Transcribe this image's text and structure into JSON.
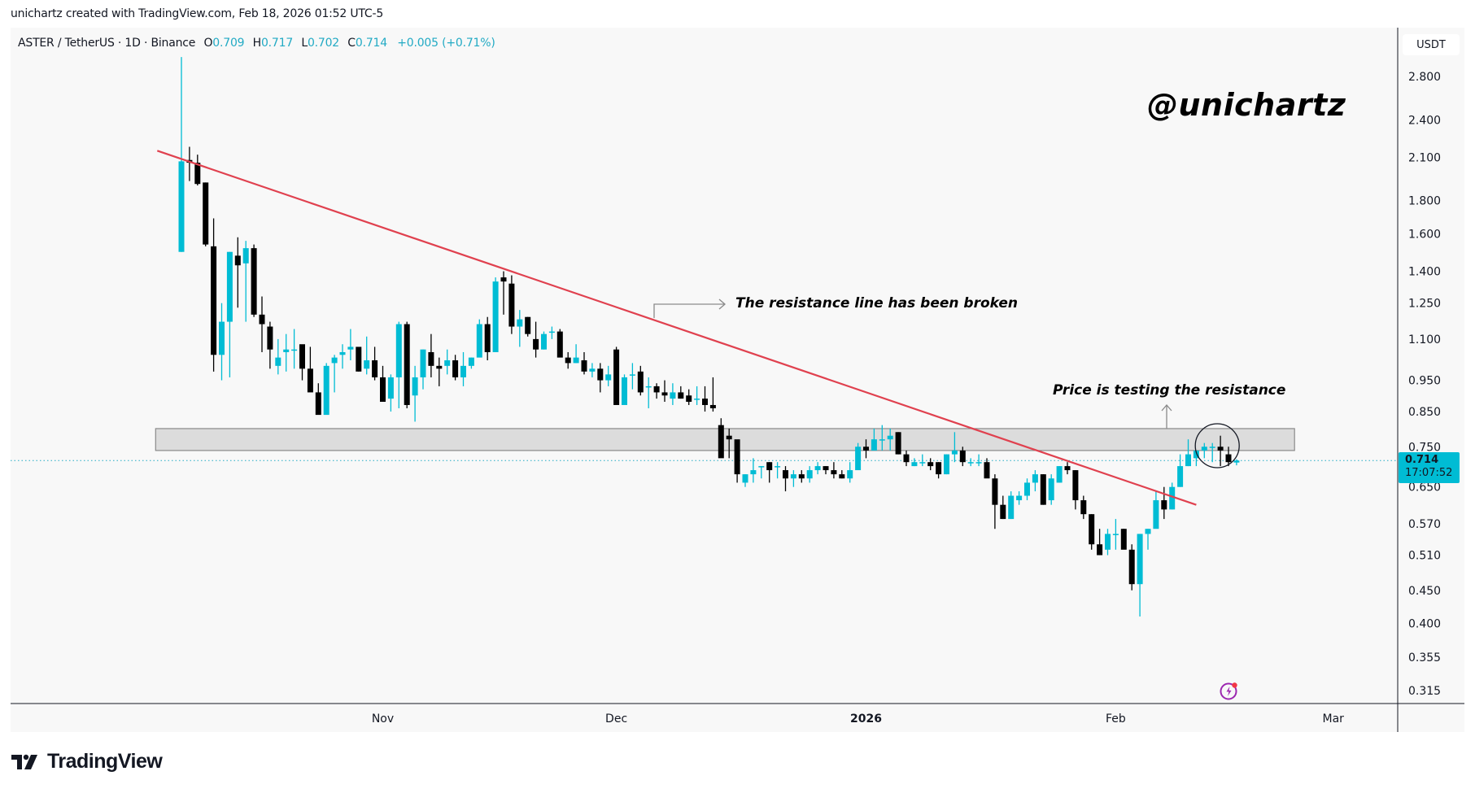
{
  "credit": "unichartz created with TradingView.com, Feb 18, 2026 01:52 UTC-5",
  "legend": {
    "symbol": "ASTER / TetherUS · 1D · Binance",
    "o_label": "O",
    "o_value": "0.709",
    "h_label": "H",
    "h_value": "0.717",
    "l_label": "L",
    "l_value": "0.702",
    "c_label": "C",
    "c_value": "0.714",
    "change": "+0.005 (+0.71%)"
  },
  "currency_button": "USDT",
  "watermark": "@unichartz",
  "annotations": {
    "broken": "The resistance line has been broken",
    "testing": "Price is testing the resistance"
  },
  "last_price": {
    "price": "0.714",
    "countdown": "17:07:52"
  },
  "brand": "TradingView",
  "colors": {
    "bull": "#00bcd4",
    "bear": "#000000",
    "trendline": "#e0414f",
    "zone": "#dcdcdc",
    "zone_border": "#8a8a8a",
    "price_line": "#22aac4"
  },
  "chart_data": {
    "type": "candlestick",
    "title": "ASTER / TetherUS · 1D · Binance",
    "scale": "log",
    "ylim": [
      0.3,
      3.0
    ],
    "yticks": [
      2.8,
      2.4,
      2.1,
      1.8,
      1.6,
      1.4,
      1.25,
      1.1,
      0.95,
      0.85,
      0.75,
      0.65,
      0.57,
      0.51,
      0.45,
      0.4,
      0.355,
      0.315
    ],
    "ytick_labels": [
      "2.800",
      "2.400",
      "2.100",
      "1.800",
      "1.600",
      "1.400",
      "1.250",
      "1.100",
      "0.950",
      "0.850",
      "0.750",
      "0.650",
      "0.570",
      "0.510",
      "0.450",
      "0.400",
      "0.355",
      "0.315"
    ],
    "xticks": [
      {
        "label": "Nov",
        "index": 25,
        "bold": false
      },
      {
        "label": "Dec",
        "index": 54,
        "bold": false
      },
      {
        "label": "2026",
        "index": 85,
        "bold": true
      },
      {
        "label": "Feb",
        "index": 116,
        "bold": false
      },
      {
        "label": "Mar",
        "index": 143,
        "bold": false
      }
    ],
    "resistance_zone": {
      "low": 0.74,
      "high": 0.8,
      "from_index": -3,
      "to_index": 138
    },
    "trendline": {
      "from": {
        "index": -3,
        "price": 2.15
      },
      "to": {
        "index": 126,
        "price": 0.61
      }
    },
    "circle_marker": {
      "index": 128,
      "price": 0.74
    },
    "last_price": 0.714,
    "candles": [
      [
        1.5,
        3.0,
        1.5,
        2.07
      ],
      [
        2.08,
        2.18,
        1.93,
        2.06
      ],
      [
        2.06,
        2.12,
        1.9,
        1.91
      ],
      [
        1.92,
        1.92,
        1.53,
        1.54
      ],
      [
        1.53,
        1.69,
        0.98,
        1.04
      ],
      [
        1.04,
        1.25,
        0.95,
        1.17
      ],
      [
        1.17,
        1.5,
        0.96,
        1.5
      ],
      [
        1.48,
        1.58,
        1.23,
        1.43
      ],
      [
        1.44,
        1.56,
        1.17,
        1.52
      ],
      [
        1.52,
        1.54,
        1.19,
        1.2
      ],
      [
        1.2,
        1.28,
        1.05,
        1.16
      ],
      [
        1.15,
        1.17,
        0.99,
        1.06
      ],
      [
        1.0,
        1.1,
        0.97,
        1.03
      ],
      [
        1.05,
        1.12,
        0.98,
        1.06
      ],
      [
        1.06,
        1.14,
        0.99,
        1.06
      ],
      [
        1.08,
        1.06,
        0.95,
        0.99
      ],
      [
        0.99,
        1.07,
        0.93,
        0.91
      ],
      [
        0.91,
        0.94,
        0.89,
        0.84
      ],
      [
        0.84,
        1.01,
        0.86,
        1.0
      ],
      [
        1.01,
        1.04,
        0.91,
        1.03
      ],
      [
        1.04,
        1.08,
        0.99,
        1.05
      ],
      [
        1.06,
        1.14,
        1.02,
        1.07
      ],
      [
        1.07,
        1.05,
        0.98,
        0.98
      ],
      [
        0.99,
        1.11,
        0.97,
        1.02
      ],
      [
        1.02,
        1.07,
        0.95,
        0.96
      ],
      [
        0.96,
        1.0,
        0.88,
        0.88
      ],
      [
        0.89,
        0.97,
        0.85,
        0.96
      ],
      [
        0.96,
        1.17,
        0.86,
        1.16
      ],
      [
        1.16,
        1.17,
        0.86,
        0.87
      ],
      [
        0.9,
        1.0,
        0.82,
        0.96
      ],
      [
        0.96,
        1.06,
        0.92,
        1.06
      ],
      [
        1.05,
        1.12,
        0.96,
        1.0
      ],
      [
        1.0,
        1.03,
        0.93,
        0.99
      ],
      [
        1.0,
        1.06,
        0.97,
        1.02
      ],
      [
        1.02,
        1.04,
        0.95,
        0.96
      ],
      [
        0.96,
        1.05,
        0.93,
        1.0
      ],
      [
        1.0,
        1.03,
        0.99,
        1.03
      ],
      [
        1.03,
        1.18,
        1.04,
        1.16
      ],
      [
        1.16,
        1.19,
        1.02,
        1.05
      ],
      [
        1.05,
        1.37,
        1.06,
        1.35
      ],
      [
        1.37,
        1.4,
        1.2,
        1.35
      ],
      [
        1.34,
        1.38,
        1.12,
        1.15
      ],
      [
        1.15,
        1.22,
        1.07,
        1.18
      ],
      [
        1.19,
        1.19,
        1.11,
        1.12
      ],
      [
        1.1,
        1.17,
        1.03,
        1.06
      ],
      [
        1.06,
        1.13,
        1.06,
        1.12
      ],
      [
        1.13,
        1.15,
        1.1,
        1.13
      ],
      [
        1.13,
        1.14,
        1.05,
        1.03
      ],
      [
        1.03,
        1.05,
        0.99,
        1.01
      ],
      [
        1.01,
        1.08,
        1.01,
        1.03
      ],
      [
        1.02,
        1.05,
        0.97,
        0.98
      ],
      [
        0.98,
        1.01,
        0.96,
        0.99
      ],
      [
        0.99,
        1.01,
        0.91,
        0.95
      ],
      [
        0.95,
        1.0,
        0.93,
        0.97
      ],
      [
        1.06,
        1.07,
        0.89,
        0.87
      ],
      [
        0.87,
        0.97,
        0.89,
        0.96
      ],
      [
        0.97,
        1.01,
        0.92,
        0.97
      ],
      [
        0.98,
        1.0,
        0.9,
        0.91
      ],
      [
        0.93,
        0.96,
        0.86,
        0.93
      ],
      [
        0.93,
        0.94,
        0.89,
        0.91
      ],
      [
        0.91,
        0.95,
        0.88,
        0.9
      ],
      [
        0.89,
        0.94,
        0.87,
        0.91
      ],
      [
        0.91,
        0.93,
        0.89,
        0.89
      ],
      [
        0.9,
        0.92,
        0.87,
        0.88
      ],
      [
        0.89,
        0.93,
        0.87,
        0.89
      ],
      [
        0.89,
        0.93,
        0.85,
        0.87
      ],
      [
        0.87,
        0.96,
        0.85,
        0.86
      ],
      [
        0.81,
        0.83,
        0.76,
        0.72
      ],
      [
        0.78,
        0.8,
        0.72,
        0.77
      ],
      [
        0.77,
        0.74,
        0.66,
        0.68
      ],
      [
        0.66,
        0.68,
        0.65,
        0.68
      ],
      [
        0.68,
        0.72,
        0.66,
        0.69
      ],
      [
        0.7,
        0.7,
        0.67,
        0.7
      ],
      [
        0.71,
        0.71,
        0.66,
        0.69
      ],
      [
        0.7,
        0.71,
        0.67,
        0.7
      ],
      [
        0.69,
        0.7,
        0.64,
        0.67
      ],
      [
        0.67,
        0.69,
        0.65,
        0.68
      ],
      [
        0.68,
        0.69,
        0.66,
        0.67
      ],
      [
        0.67,
        0.7,
        0.66,
        0.69
      ],
      [
        0.69,
        0.71,
        0.68,
        0.7
      ],
      [
        0.7,
        0.7,
        0.68,
        0.69
      ],
      [
        0.69,
        0.71,
        0.67,
        0.68
      ],
      [
        0.68,
        0.69,
        0.67,
        0.67
      ],
      [
        0.67,
        0.71,
        0.66,
        0.69
      ],
      [
        0.69,
        0.76,
        0.7,
        0.75
      ],
      [
        0.75,
        0.77,
        0.72,
        0.74
      ],
      [
        0.74,
        0.8,
        0.74,
        0.77
      ],
      [
        0.77,
        0.81,
        0.74,
        0.77
      ],
      [
        0.77,
        0.8,
        0.74,
        0.78
      ],
      [
        0.79,
        0.79,
        0.73,
        0.73
      ],
      [
        0.73,
        0.74,
        0.7,
        0.71
      ],
      [
        0.7,
        0.72,
        0.7,
        0.71
      ],
      [
        0.71,
        0.73,
        0.7,
        0.71
      ],
      [
        0.71,
        0.72,
        0.69,
        0.7
      ],
      [
        0.71,
        0.71,
        0.67,
        0.68
      ],
      [
        0.68,
        0.73,
        0.68,
        0.73
      ],
      [
        0.73,
        0.79,
        0.71,
        0.74
      ],
      [
        0.74,
        0.75,
        0.7,
        0.71
      ],
      [
        0.71,
        0.72,
        0.7,
        0.71
      ],
      [
        0.71,
        0.73,
        0.7,
        0.71
      ],
      [
        0.71,
        0.72,
        0.68,
        0.67
      ],
      [
        0.67,
        0.68,
        0.56,
        0.61
      ],
      [
        0.61,
        0.63,
        0.58,
        0.58
      ],
      [
        0.58,
        0.64,
        0.58,
        0.63
      ],
      [
        0.62,
        0.64,
        0.61,
        0.63
      ],
      [
        0.63,
        0.67,
        0.62,
        0.66
      ],
      [
        0.66,
        0.69,
        0.64,
        0.68
      ],
      [
        0.68,
        0.68,
        0.61,
        0.61
      ],
      [
        0.62,
        0.68,
        0.61,
        0.67
      ],
      [
        0.66,
        0.7,
        0.66,
        0.7
      ],
      [
        0.7,
        0.71,
        0.68,
        0.69
      ],
      [
        0.69,
        0.69,
        0.6,
        0.62
      ],
      [
        0.62,
        0.63,
        0.58,
        0.59
      ],
      [
        0.59,
        0.59,
        0.52,
        0.53
      ],
      [
        0.53,
        0.56,
        0.51,
        0.51
      ],
      [
        0.52,
        0.56,
        0.51,
        0.55
      ],
      [
        0.55,
        0.58,
        0.52,
        0.55
      ],
      [
        0.56,
        0.56,
        0.53,
        0.52
      ],
      [
        0.52,
        0.53,
        0.45,
        0.46
      ],
      [
        0.46,
        0.55,
        0.41,
        0.55
      ],
      [
        0.55,
        0.56,
        0.52,
        0.56
      ],
      [
        0.56,
        0.64,
        0.59,
        0.62
      ],
      [
        0.62,
        0.65,
        0.58,
        0.6
      ],
      [
        0.6,
        0.66,
        0.6,
        0.65
      ],
      [
        0.65,
        0.73,
        0.65,
        0.7
      ],
      [
        0.7,
        0.77,
        0.7,
        0.73
      ],
      [
        0.72,
        0.74,
        0.7,
        0.74
      ],
      [
        0.74,
        0.76,
        0.72,
        0.75
      ],
      [
        0.75,
        0.76,
        0.71,
        0.75
      ],
      [
        0.75,
        0.78,
        0.7,
        0.74
      ],
      [
        0.73,
        0.75,
        0.7,
        0.71
      ],
      [
        0.709,
        0.717,
        0.702,
        0.714
      ]
    ]
  }
}
